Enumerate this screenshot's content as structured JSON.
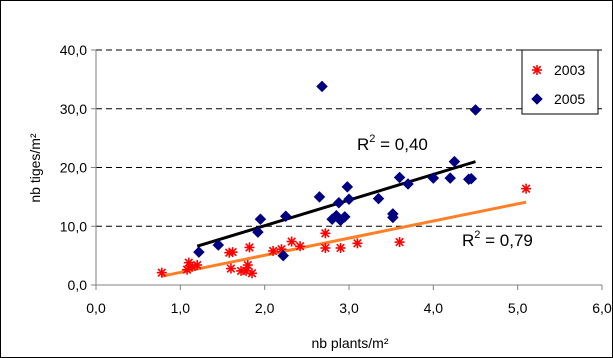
{
  "chart_data": {
    "type": "scatter",
    "title": "",
    "xlabel": "nb plants/m²",
    "ylabel": "nb tiges/m²",
    "xlim": [
      0,
      6
    ],
    "ylim": [
      0,
      40
    ],
    "x_ticks": [
      "0,0",
      "1,0",
      "2,0",
      "3,0",
      "4,0",
      "5,0",
      "6,0"
    ],
    "y_ticks": [
      "0,0",
      "10,0",
      "20,0",
      "30,0",
      "40,0"
    ],
    "grid": "horizontal-dashed",
    "legend_position": "top-right",
    "series": [
      {
        "name": "2003",
        "marker": "star",
        "color": "#ff0000",
        "points": [
          [
            0.78,
            2.1
          ],
          [
            1.08,
            2.6
          ],
          [
            1.1,
            3.8
          ],
          [
            1.14,
            3.1
          ],
          [
            1.2,
            3.4
          ],
          [
            1.58,
            5.5
          ],
          [
            1.6,
            2.8
          ],
          [
            1.62,
            5.6
          ],
          [
            1.72,
            2.4
          ],
          [
            1.78,
            2.4
          ],
          [
            1.8,
            3.4
          ],
          [
            1.82,
            6.4
          ],
          [
            1.85,
            2.0
          ],
          [
            2.1,
            5.8
          ],
          [
            2.2,
            6.1
          ],
          [
            2.32,
            7.4
          ],
          [
            2.42,
            6.6
          ],
          [
            2.72,
            8.8
          ],
          [
            2.72,
            6.3
          ],
          [
            2.9,
            6.3
          ],
          [
            3.1,
            7.1
          ],
          [
            3.6,
            7.3
          ],
          [
            5.1,
            16.4
          ]
        ],
        "trendline": {
          "x": [
            0.78,
            5.1
          ],
          "y": [
            1.5,
            14.1
          ],
          "color": "#ff7f27",
          "r2": "0,79"
        }
      },
      {
        "name": "2005",
        "marker": "diamond",
        "color": "#000080",
        "points": [
          [
            1.22,
            5.6
          ],
          [
            1.45,
            6.8
          ],
          [
            1.92,
            9.0
          ],
          [
            1.95,
            11.2
          ],
          [
            2.22,
            5.0
          ],
          [
            2.25,
            11.7
          ],
          [
            2.65,
            15.0
          ],
          [
            2.68,
            33.8
          ],
          [
            2.8,
            11.2
          ],
          [
            2.85,
            11.8
          ],
          [
            2.88,
            14.0
          ],
          [
            2.9,
            11.0
          ],
          [
            2.95,
            11.6
          ],
          [
            2.98,
            16.7
          ],
          [
            3.0,
            14.6
          ],
          [
            3.35,
            14.7
          ],
          [
            3.52,
            11.5
          ],
          [
            3.52,
            12.1
          ],
          [
            3.6,
            18.3
          ],
          [
            3.7,
            17.2
          ],
          [
            4.0,
            18.2
          ],
          [
            4.2,
            18.2
          ],
          [
            4.25,
            21.0
          ],
          [
            4.42,
            18.0
          ],
          [
            4.45,
            18.1
          ],
          [
            4.5,
            29.8
          ]
        ],
        "trendline": {
          "x": [
            1.2,
            4.5
          ],
          "y": [
            6.6,
            21.0
          ],
          "color": "#000000",
          "r2": "0,40"
        }
      }
    ],
    "annotations": [
      {
        "label": "R",
        "sup": "2",
        "text": " = 0,40",
        "series": "2005"
      },
      {
        "label": "R",
        "sup": "2",
        "text": " = 0,79",
        "series": "2003"
      }
    ]
  },
  "colors": {
    "plot_background": "#ffffff",
    "grid": "#000000",
    "axis": "#808080"
  }
}
